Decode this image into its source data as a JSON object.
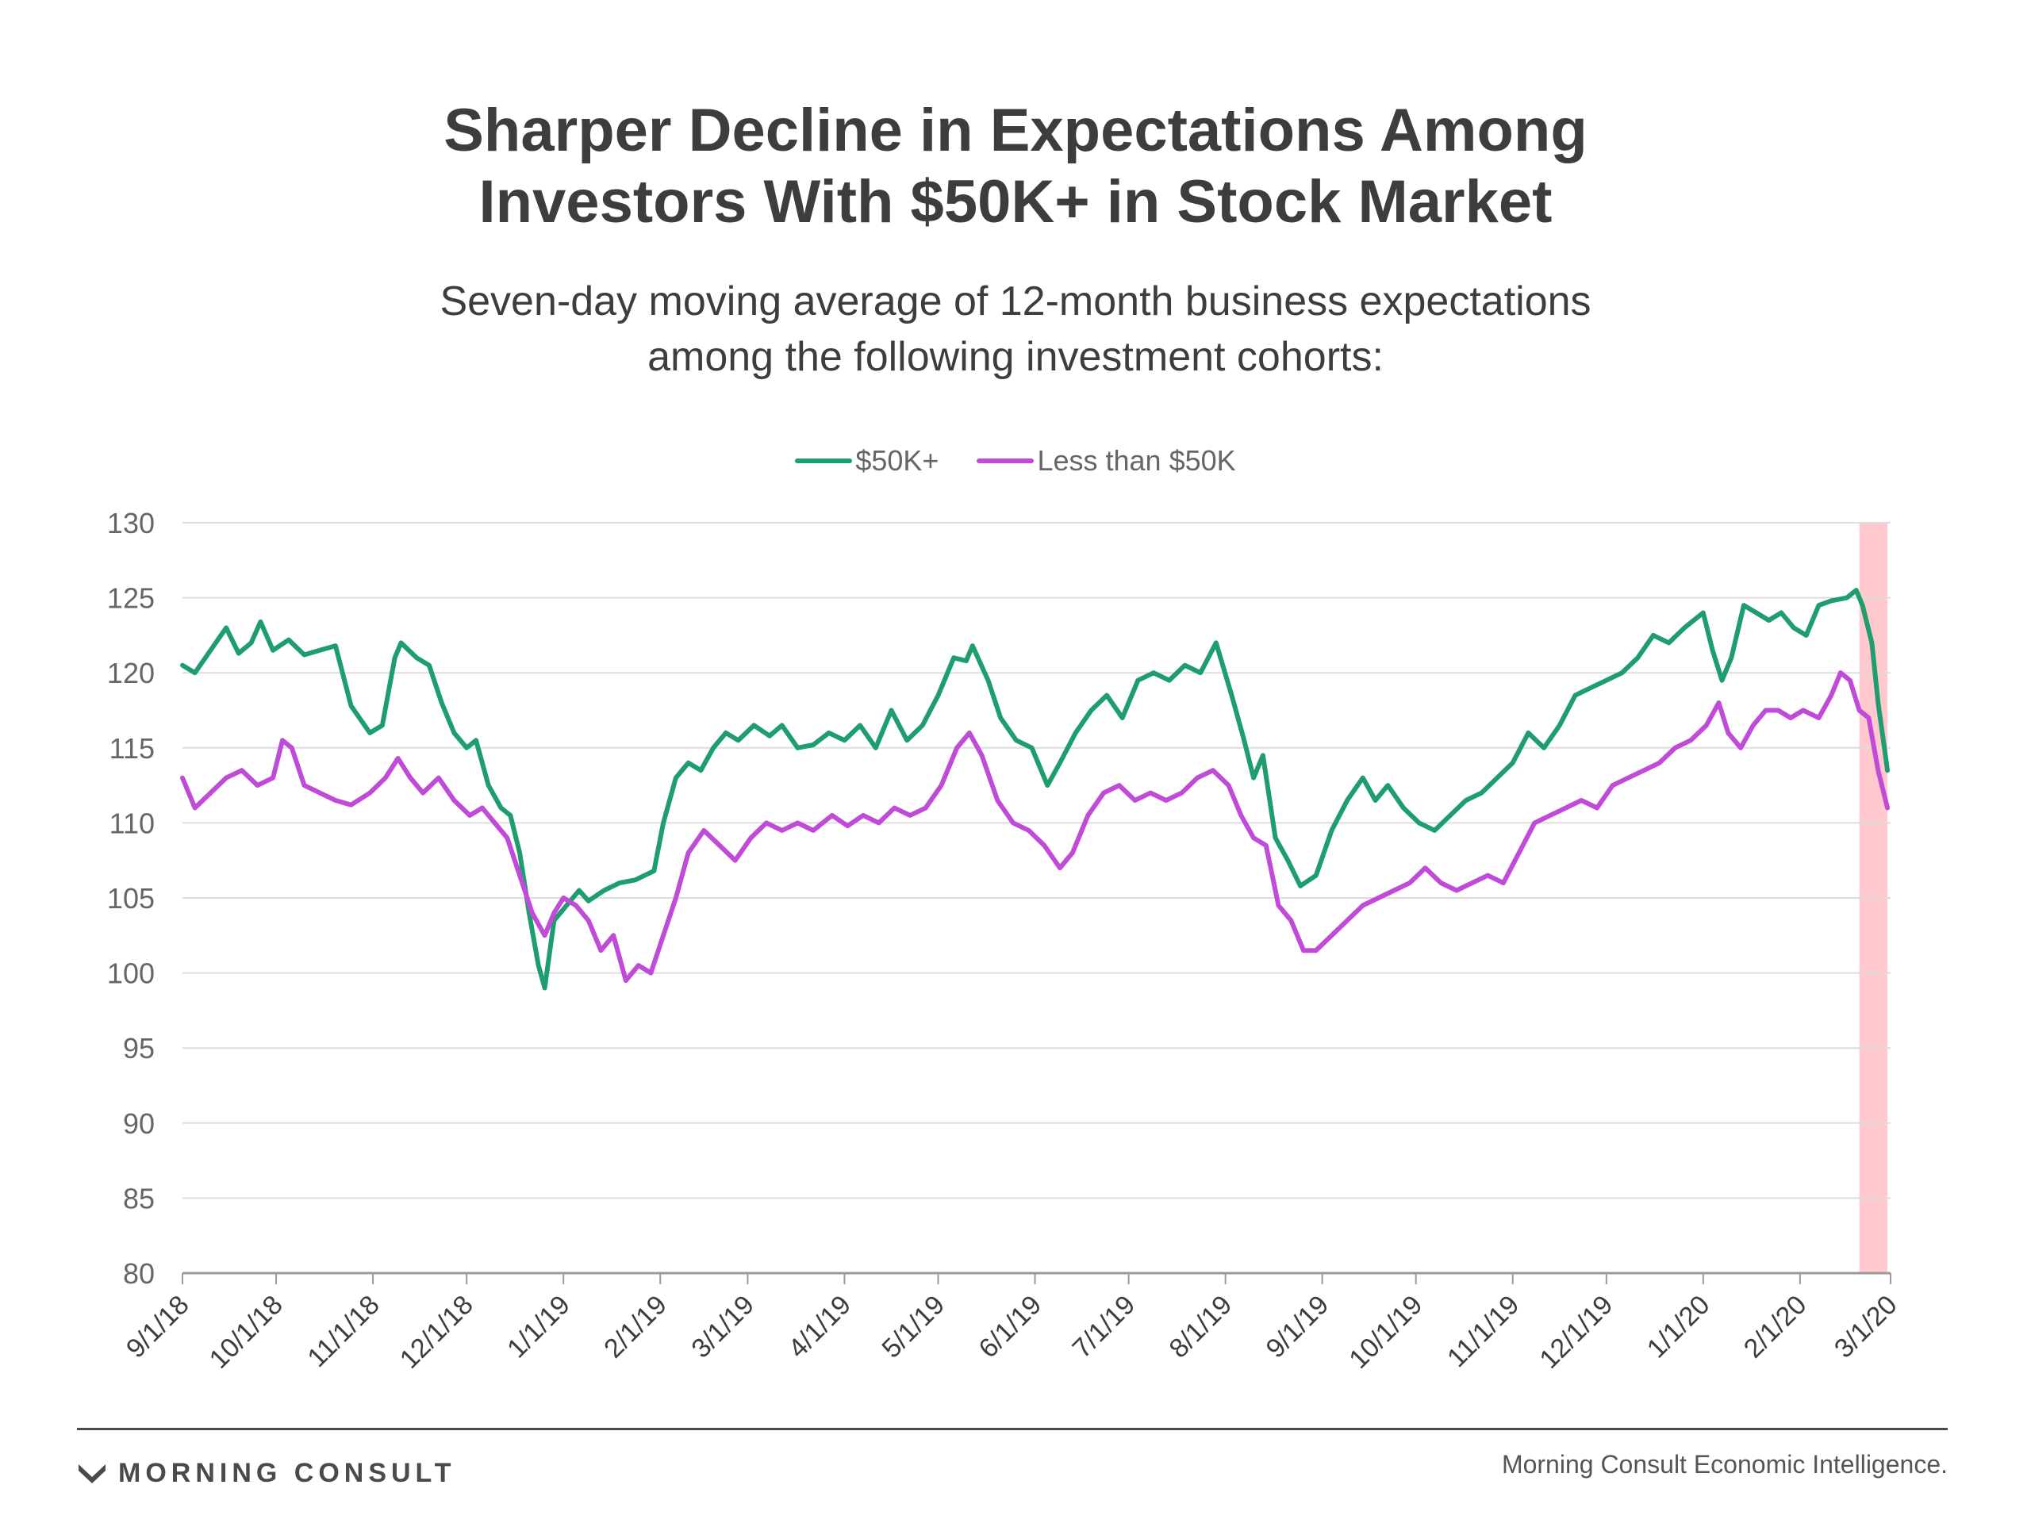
{
  "header": {
    "title_lines": [
      "Sharper Decline in Expectations Among",
      "Investors With $50K+ in Stock Market"
    ],
    "subtitle_lines": [
      "Seven-day moving average of 12-month business expectations",
      "among the following investment cohorts:"
    ]
  },
  "footer": {
    "brand": "MORNING CONSULT",
    "source": "Morning Consult Economic Intelligence."
  },
  "colors": {
    "high": "#1e9e6e",
    "low": "#c04bd8",
    "highlight": "#ffc9cd",
    "grid": "#dddddd"
  },
  "chart_data": {
    "type": "line",
    "title": "Sharper Decline in Expectations Among Investors With $50K+ in Stock Market",
    "subtitle": "Seven-day moving average of 12-month business expectations among the following investment cohorts:",
    "xlabel": "",
    "ylabel": "",
    "ylim": [
      80,
      130
    ],
    "yticks": [
      80,
      85,
      90,
      95,
      100,
      105,
      110,
      115,
      120,
      125,
      130
    ],
    "xlim": [
      "2018-09-01",
      "2020-03-01"
    ],
    "xticks": [
      "9/1/18",
      "10/1/18",
      "11/1/18",
      "12/1/18",
      "1/1/19",
      "2/1/19",
      "3/1/19",
      "4/1/19",
      "5/1/19",
      "6/1/19",
      "7/1/19",
      "8/1/19",
      "9/1/19",
      "10/1/19",
      "11/1/19",
      "12/1/19",
      "1/1/20",
      "2/1/20",
      "3/1/20"
    ],
    "grid": true,
    "legend": "top-center",
    "highlight_range": [
      "2020-02-20",
      "2020-02-29"
    ],
    "series": [
      {
        "name": "$50K+",
        "color": "#1e9e6e",
        "points": [
          [
            "2018-09-01",
            120.5
          ],
          [
            "2018-09-05",
            120.0
          ],
          [
            "2018-09-10",
            121.5
          ],
          [
            "2018-09-15",
            123.0
          ],
          [
            "2018-09-19",
            121.3
          ],
          [
            "2018-09-23",
            122.0
          ],
          [
            "2018-09-26",
            123.4
          ],
          [
            "2018-09-30",
            121.5
          ],
          [
            "2018-10-05",
            122.2
          ],
          [
            "2018-10-10",
            121.2
          ],
          [
            "2018-10-15",
            121.5
          ],
          [
            "2018-10-20",
            121.8
          ],
          [
            "2018-10-25",
            117.8
          ],
          [
            "2018-10-31",
            116.0
          ],
          [
            "2018-11-04",
            116.5
          ],
          [
            "2018-11-08",
            121.0
          ],
          [
            "2018-11-10",
            122.0
          ],
          [
            "2018-11-15",
            121.0
          ],
          [
            "2018-11-19",
            120.5
          ],
          [
            "2018-11-23",
            118.0
          ],
          [
            "2018-11-27",
            116.0
          ],
          [
            "2018-12-01",
            115.0
          ],
          [
            "2018-12-04",
            115.5
          ],
          [
            "2018-12-08",
            112.5
          ],
          [
            "2018-12-12",
            111.0
          ],
          [
            "2018-12-15",
            110.5
          ],
          [
            "2018-12-18",
            108.0
          ],
          [
            "2018-12-21",
            104.0
          ],
          [
            "2018-12-24",
            100.5
          ],
          [
            "2018-12-26",
            99.0
          ],
          [
            "2018-12-29",
            103.5
          ],
          [
            "2019-01-02",
            104.5
          ],
          [
            "2019-01-06",
            105.5
          ],
          [
            "2019-01-09",
            104.8
          ],
          [
            "2019-01-14",
            105.5
          ],
          [
            "2019-01-19",
            106.0
          ],
          [
            "2019-01-24",
            106.2
          ],
          [
            "2019-01-30",
            106.8
          ],
          [
            "2019-02-02",
            110.0
          ],
          [
            "2019-02-06",
            113.0
          ],
          [
            "2019-02-10",
            114.0
          ],
          [
            "2019-02-14",
            113.5
          ],
          [
            "2019-02-18",
            115.0
          ],
          [
            "2019-02-22",
            116.0
          ],
          [
            "2019-02-26",
            115.5
          ],
          [
            "2019-03-03",
            116.5
          ],
          [
            "2019-03-08",
            115.8
          ],
          [
            "2019-03-12",
            116.5
          ],
          [
            "2019-03-17",
            115.0
          ],
          [
            "2019-03-22",
            115.2
          ],
          [
            "2019-03-27",
            116.0
          ],
          [
            "2019-04-01",
            115.5
          ],
          [
            "2019-04-06",
            116.5
          ],
          [
            "2019-04-11",
            115.0
          ],
          [
            "2019-04-16",
            117.5
          ],
          [
            "2019-04-21",
            115.5
          ],
          [
            "2019-04-26",
            116.5
          ],
          [
            "2019-05-01",
            118.5
          ],
          [
            "2019-05-06",
            121.0
          ],
          [
            "2019-05-10",
            120.8
          ],
          [
            "2019-05-12",
            121.8
          ],
          [
            "2019-05-17",
            119.5
          ],
          [
            "2019-05-21",
            117.0
          ],
          [
            "2019-05-26",
            115.5
          ],
          [
            "2019-05-31",
            115.0
          ],
          [
            "2019-06-05",
            112.5
          ],
          [
            "2019-06-09",
            114.0
          ],
          [
            "2019-06-14",
            116.0
          ],
          [
            "2019-06-19",
            117.5
          ],
          [
            "2019-06-24",
            118.5
          ],
          [
            "2019-06-29",
            117.0
          ],
          [
            "2019-07-04",
            119.5
          ],
          [
            "2019-07-09",
            120.0
          ],
          [
            "2019-07-14",
            119.5
          ],
          [
            "2019-07-19",
            120.5
          ],
          [
            "2019-07-24",
            120.0
          ],
          [
            "2019-07-29",
            122.0
          ],
          [
            "2019-08-03",
            118.5
          ],
          [
            "2019-08-07",
            115.5
          ],
          [
            "2019-08-10",
            113.0
          ],
          [
            "2019-08-13",
            114.5
          ],
          [
            "2019-08-17",
            109.0
          ],
          [
            "2019-08-21",
            107.5
          ],
          [
            "2019-08-25",
            105.8
          ],
          [
            "2019-08-30",
            106.5
          ],
          [
            "2019-09-04",
            109.5
          ],
          [
            "2019-09-09",
            111.5
          ],
          [
            "2019-09-14",
            113.0
          ],
          [
            "2019-09-18",
            111.5
          ],
          [
            "2019-09-22",
            112.5
          ],
          [
            "2019-09-27",
            111.0
          ],
          [
            "2019-10-02",
            110.0
          ],
          [
            "2019-10-07",
            109.5
          ],
          [
            "2019-10-12",
            110.5
          ],
          [
            "2019-10-17",
            111.5
          ],
          [
            "2019-10-22",
            112.0
          ],
          [
            "2019-10-27",
            113.0
          ],
          [
            "2019-11-01",
            114.0
          ],
          [
            "2019-11-06",
            116.0
          ],
          [
            "2019-11-11",
            115.0
          ],
          [
            "2019-11-16",
            116.5
          ],
          [
            "2019-11-21",
            118.5
          ],
          [
            "2019-11-26",
            119.0
          ],
          [
            "2019-12-01",
            119.5
          ],
          [
            "2019-12-06",
            120.0
          ],
          [
            "2019-12-11",
            121.0
          ],
          [
            "2019-12-16",
            122.5
          ],
          [
            "2019-12-21",
            122.0
          ],
          [
            "2019-12-26",
            123.0
          ],
          [
            "2020-01-01",
            124.0
          ],
          [
            "2020-01-04",
            121.5
          ],
          [
            "2020-01-07",
            119.5
          ],
          [
            "2020-01-10",
            121.0
          ],
          [
            "2020-01-14",
            124.5
          ],
          [
            "2020-01-18",
            124.0
          ],
          [
            "2020-01-22",
            123.5
          ],
          [
            "2020-01-26",
            124.0
          ],
          [
            "2020-01-30",
            123.0
          ],
          [
            "2020-02-03",
            122.5
          ],
          [
            "2020-02-07",
            124.5
          ],
          [
            "2020-02-11",
            124.8
          ],
          [
            "2020-02-16",
            125.0
          ],
          [
            "2020-02-19",
            125.5
          ],
          [
            "2020-02-21",
            124.5
          ],
          [
            "2020-02-24",
            122.0
          ],
          [
            "2020-02-26",
            118.0
          ],
          [
            "2020-02-29",
            113.5
          ]
        ]
      },
      {
        "name": "Less than $50K",
        "color": "#c04bd8",
        "points": [
          [
            "2018-09-01",
            113.0
          ],
          [
            "2018-09-05",
            111.0
          ],
          [
            "2018-09-10",
            112.0
          ],
          [
            "2018-09-15",
            113.0
          ],
          [
            "2018-09-20",
            113.5
          ],
          [
            "2018-09-25",
            112.5
          ],
          [
            "2018-09-30",
            113.0
          ],
          [
            "2018-10-03",
            115.5
          ],
          [
            "2018-10-06",
            115.0
          ],
          [
            "2018-10-10",
            112.5
          ],
          [
            "2018-10-15",
            112.0
          ],
          [
            "2018-10-20",
            111.5
          ],
          [
            "2018-10-25",
            111.2
          ],
          [
            "2018-10-31",
            112.0
          ],
          [
            "2018-11-05",
            113.0
          ],
          [
            "2018-11-09",
            114.3
          ],
          [
            "2018-11-13",
            113.0
          ],
          [
            "2018-11-17",
            112.0
          ],
          [
            "2018-11-22",
            113.0
          ],
          [
            "2018-11-27",
            111.5
          ],
          [
            "2018-12-02",
            110.5
          ],
          [
            "2018-12-06",
            111.0
          ],
          [
            "2018-12-10",
            110.0
          ],
          [
            "2018-12-14",
            109.0
          ],
          [
            "2018-12-18",
            106.5
          ],
          [
            "2018-12-22",
            104.0
          ],
          [
            "2018-12-26",
            102.5
          ],
          [
            "2018-12-29",
            104.0
          ],
          [
            "2019-01-01",
            105.0
          ],
          [
            "2019-01-05",
            104.5
          ],
          [
            "2019-01-09",
            103.5
          ],
          [
            "2019-01-13",
            101.5
          ],
          [
            "2019-01-17",
            102.5
          ],
          [
            "2019-01-21",
            99.5
          ],
          [
            "2019-01-25",
            100.5
          ],
          [
            "2019-01-29",
            100.0
          ],
          [
            "2019-02-02",
            102.5
          ],
          [
            "2019-02-06",
            105.0
          ],
          [
            "2019-02-10",
            108.0
          ],
          [
            "2019-02-15",
            109.5
          ],
          [
            "2019-02-20",
            108.5
          ],
          [
            "2019-02-25",
            107.5
          ],
          [
            "2019-03-02",
            109.0
          ],
          [
            "2019-03-07",
            110.0
          ],
          [
            "2019-03-12",
            109.5
          ],
          [
            "2019-03-17",
            110.0
          ],
          [
            "2019-03-22",
            109.5
          ],
          [
            "2019-03-28",
            110.5
          ],
          [
            "2019-04-02",
            109.8
          ],
          [
            "2019-04-07",
            110.5
          ],
          [
            "2019-04-12",
            110.0
          ],
          [
            "2019-04-17",
            111.0
          ],
          [
            "2019-04-22",
            110.5
          ],
          [
            "2019-04-27",
            111.0
          ],
          [
            "2019-05-02",
            112.5
          ],
          [
            "2019-05-07",
            115.0
          ],
          [
            "2019-05-11",
            116.0
          ],
          [
            "2019-05-15",
            114.5
          ],
          [
            "2019-05-20",
            111.5
          ],
          [
            "2019-05-25",
            110.0
          ],
          [
            "2019-05-30",
            109.5
          ],
          [
            "2019-06-04",
            108.5
          ],
          [
            "2019-06-09",
            107.0
          ],
          [
            "2019-06-13",
            108.0
          ],
          [
            "2019-06-18",
            110.5
          ],
          [
            "2019-06-23",
            112.0
          ],
          [
            "2019-06-28",
            112.5
          ],
          [
            "2019-07-03",
            111.5
          ],
          [
            "2019-07-08",
            112.0
          ],
          [
            "2019-07-13",
            111.5
          ],
          [
            "2019-07-18",
            112.0
          ],
          [
            "2019-07-23",
            113.0
          ],
          [
            "2019-07-28",
            113.5
          ],
          [
            "2019-08-02",
            112.5
          ],
          [
            "2019-08-06",
            110.5
          ],
          [
            "2019-08-10",
            109.0
          ],
          [
            "2019-08-14",
            108.5
          ],
          [
            "2019-08-18",
            104.5
          ],
          [
            "2019-08-22",
            103.5
          ],
          [
            "2019-08-26",
            101.5
          ],
          [
            "2019-08-30",
            101.5
          ],
          [
            "2019-09-04",
            102.5
          ],
          [
            "2019-09-09",
            103.5
          ],
          [
            "2019-09-14",
            104.5
          ],
          [
            "2019-09-19",
            105.0
          ],
          [
            "2019-09-24",
            105.5
          ],
          [
            "2019-09-29",
            106.0
          ],
          [
            "2019-10-04",
            107.0
          ],
          [
            "2019-10-09",
            106.0
          ],
          [
            "2019-10-14",
            105.5
          ],
          [
            "2019-10-19",
            106.0
          ],
          [
            "2019-10-24",
            106.5
          ],
          [
            "2019-10-29",
            106.0
          ],
          [
            "2019-11-03",
            108.0
          ],
          [
            "2019-11-08",
            110.0
          ],
          [
            "2019-11-13",
            110.5
          ],
          [
            "2019-11-18",
            111.0
          ],
          [
            "2019-11-23",
            111.5
          ],
          [
            "2019-11-28",
            111.0
          ],
          [
            "2019-12-03",
            112.5
          ],
          [
            "2019-12-08",
            113.0
          ],
          [
            "2019-12-13",
            113.5
          ],
          [
            "2019-12-18",
            114.0
          ],
          [
            "2019-12-23",
            115.0
          ],
          [
            "2019-12-28",
            115.5
          ],
          [
            "2020-01-02",
            116.5
          ],
          [
            "2020-01-06",
            118.0
          ],
          [
            "2020-01-09",
            116.0
          ],
          [
            "2020-01-13",
            115.0
          ],
          [
            "2020-01-17",
            116.5
          ],
          [
            "2020-01-21",
            117.5
          ],
          [
            "2020-01-25",
            117.5
          ],
          [
            "2020-01-29",
            117.0
          ],
          [
            "2020-02-02",
            117.5
          ],
          [
            "2020-02-07",
            117.0
          ],
          [
            "2020-02-11",
            118.5
          ],
          [
            "2020-02-14",
            120.0
          ],
          [
            "2020-02-17",
            119.5
          ],
          [
            "2020-02-20",
            117.5
          ],
          [
            "2020-02-23",
            117.0
          ],
          [
            "2020-02-26",
            113.5
          ],
          [
            "2020-02-29",
            111.0
          ]
        ]
      }
    ]
  }
}
